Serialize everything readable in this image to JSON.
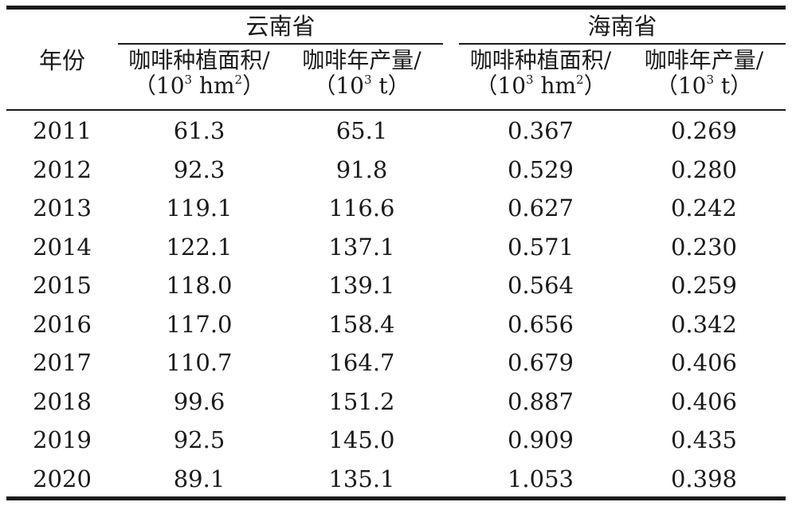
{
  "header": {
    "year": "年份",
    "groups": [
      "云南省",
      "海南省"
    ],
    "columns": [
      {
        "label": "咖啡种植面积/",
        "unit_open": "（10",
        "unit_sup": "3",
        "unit_mid": " hm",
        "unit_sup2": "2",
        "unit_close": "）"
      },
      {
        "label": "咖啡年产量/",
        "unit_open": "（10",
        "unit_sup": "3",
        "unit_mid": " t",
        "unit_sup2": "",
        "unit_close": "）"
      },
      {
        "label": "咖啡种植面积/",
        "unit_open": "（10",
        "unit_sup": "3",
        "unit_mid": " hm",
        "unit_sup2": "2",
        "unit_close": "）"
      },
      {
        "label": "咖啡年产量/",
        "unit_open": "（10",
        "unit_sup": "3",
        "unit_mid": " t",
        "unit_sup2": "",
        "unit_close": "）"
      }
    ]
  },
  "rows": [
    [
      "2011",
      "61.3",
      "65.1",
      "0.367",
      "0.269"
    ],
    [
      "2012",
      "92.3",
      "91.8",
      "0.529",
      "0.280"
    ],
    [
      "2013",
      "119.1",
      "116.6",
      "0.627",
      "0.242"
    ],
    [
      "2014",
      "122.1",
      "137.1",
      "0.571",
      "0.230"
    ],
    [
      "2015",
      "118.0",
      "139.1",
      "0.564",
      "0.259"
    ],
    [
      "2016",
      "117.0",
      "158.4",
      "0.656",
      "0.342"
    ],
    [
      "2017",
      "110.7",
      "164.7",
      "0.679",
      "0.406"
    ],
    [
      "2018",
      "99.6",
      "151.2",
      "0.887",
      "0.406"
    ],
    [
      "2019",
      "92.5",
      "145.0",
      "0.909",
      "0.435"
    ],
    [
      "2020",
      "89.1",
      "135.1",
      "1.053",
      "0.398"
    ]
  ]
}
